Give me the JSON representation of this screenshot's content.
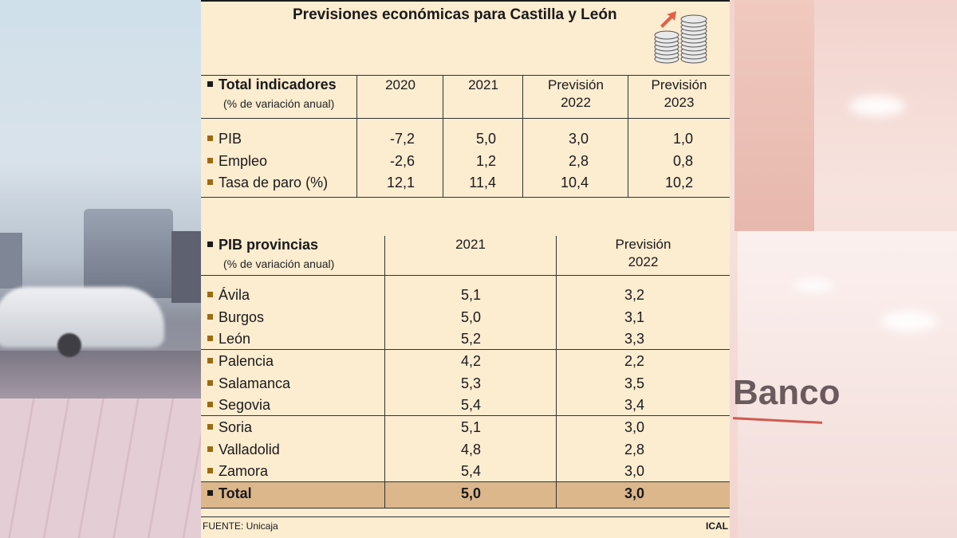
{
  "title": "Previsiones económicas para Castilla y León",
  "icon": "coins-rising-icon",
  "indicadores": {
    "heading": "Total indicadores",
    "subheading": "(% de variación anual)",
    "columns": [
      {
        "line1": "2020",
        "line2": ""
      },
      {
        "line1": "2021",
        "line2": ""
      },
      {
        "line1": "Previsión",
        "line2": "2022"
      },
      {
        "line1": "Previsión",
        "line2": "2023"
      }
    ],
    "rows": [
      {
        "label": "PIB",
        "values": [
          "-7,2",
          "5,0",
          "3,0",
          "1,0"
        ]
      },
      {
        "label": "Empleo",
        "values": [
          "-2,6",
          "1,2",
          "2,8",
          "0,8"
        ]
      },
      {
        "label": "Tasa de paro (%)",
        "values": [
          "12,1",
          "11,4",
          "10,4",
          "10,2"
        ]
      }
    ]
  },
  "provincias": {
    "heading": "PIB provincias",
    "subheading": "(% de variación anual)",
    "columns": [
      {
        "line1": "2021",
        "line2": ""
      },
      {
        "line1": "Previsión",
        "line2": "2022"
      }
    ],
    "rows": [
      {
        "label": "Ávila",
        "values": [
          "5,1",
          "3,2"
        ]
      },
      {
        "label": "Burgos",
        "values": [
          "5,0",
          "3,1"
        ]
      },
      {
        "label": "León",
        "values": [
          "5,2",
          "3,3"
        ]
      },
      {
        "label": "Palencia",
        "values": [
          "4,2",
          "2,2"
        ]
      },
      {
        "label": "Salamanca",
        "values": [
          "5,3",
          "3,5"
        ]
      },
      {
        "label": "Segovia",
        "values": [
          "5,4",
          "3,4"
        ]
      },
      {
        "label": "Soria",
        "values": [
          "5,1",
          "3,0"
        ]
      },
      {
        "label": "Valladolid",
        "values": [
          "4,8",
          "2,8"
        ]
      },
      {
        "label": "Zamora",
        "values": [
          "5,4",
          "3,0"
        ]
      }
    ],
    "total": {
      "label": "Total",
      "values": [
        "5,0",
        "3,0"
      ]
    }
  },
  "footer": {
    "source": "FUENTE: Unicaja",
    "credit": "ICAL"
  },
  "background_sign": "Banco",
  "colors": {
    "panel": "#fcecd0",
    "total_band": "#dcb78c",
    "bullet": "#9b6a12",
    "arrow": "#e0614a"
  }
}
